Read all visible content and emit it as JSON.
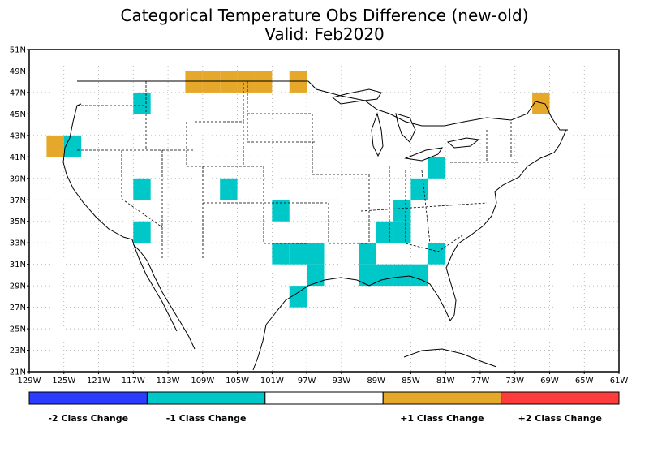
{
  "title": {
    "line1": "Categorical Temperature Obs Difference (new-old)",
    "line2": "Valid: Feb2020"
  },
  "axes": {
    "lat_labels": [
      "51N",
      "49N",
      "47N",
      "45N",
      "43N",
      "41N",
      "39N",
      "37N",
      "35N",
      "33N",
      "31N",
      "29N",
      "27N",
      "25N",
      "23N",
      "21N"
    ],
    "lon_labels": [
      "129W",
      "125W",
      "121W",
      "117W",
      "113W",
      "109W",
      "105W",
      "101W",
      "97W",
      "93W",
      "89W",
      "85W",
      "81W",
      "77W",
      "73W",
      "69W",
      "65W",
      "61W"
    ],
    "lat_range": [
      21,
      51
    ],
    "lon_range": [
      -129,
      -61
    ]
  },
  "colors": {
    "minus2": "#2a3cff",
    "minus1": "#00c8c8",
    "zero": "#ffffff",
    "plus1": "#e6a82a",
    "plus2": "#ff3c3c"
  },
  "legend": [
    {
      "label": "-2 Class Change",
      "color": "#2a3cff"
    },
    {
      "label": "-1 Class Change",
      "color": "#00c8c8"
    },
    {
      "label": "",
      "color": "#ffffff"
    },
    {
      "label": "+1 Class Change",
      "color": "#e6a82a"
    },
    {
      "label": "+2 Class Change",
      "color": "#ff3c3c"
    }
  ],
  "chart_data": {
    "type": "heatmap",
    "grid_resolution_deg": 2,
    "x_unit": "longitude (deg E)",
    "y_unit": "latitude (deg N)",
    "cells": [
      {
        "lon_min": -117,
        "lat_min": 45,
        "value": -1
      },
      {
        "lon_min": -127,
        "lat_min": 41,
        "value": 1
      },
      {
        "lon_min": -125,
        "lat_min": 41,
        "value": -1
      },
      {
        "lon_min": -111,
        "lat_min": 47,
        "value": 1
      },
      {
        "lon_min": -109,
        "lat_min": 47,
        "value": 1
      },
      {
        "lon_min": -107,
        "lat_min": 47,
        "value": 1
      },
      {
        "lon_min": -105,
        "lat_min": 47,
        "value": 1
      },
      {
        "lon_min": -103,
        "lat_min": 47,
        "value": 1
      },
      {
        "lon_min": -99,
        "lat_min": 47,
        "value": 1
      },
      {
        "lon_min": -71,
        "lat_min": 45,
        "value": 1
      },
      {
        "lon_min": -117,
        "lat_min": 37,
        "value": -1
      },
      {
        "lon_min": -107,
        "lat_min": 37,
        "value": -1
      },
      {
        "lon_min": -117,
        "lat_min": 33,
        "value": -1
      },
      {
        "lon_min": -101,
        "lat_min": 35,
        "value": -1
      },
      {
        "lon_min": -101,
        "lat_min": 31,
        "value": -1
      },
      {
        "lon_min": -99,
        "lat_min": 31,
        "value": -1
      },
      {
        "lon_min": -97,
        "lat_min": 31,
        "value": -1
      },
      {
        "lon_min": -97,
        "lat_min": 29,
        "value": -1
      },
      {
        "lon_min": -99,
        "lat_min": 27,
        "value": -1
      },
      {
        "lon_min": -83,
        "lat_min": 39,
        "value": -1
      },
      {
        "lon_min": -85,
        "lat_min": 37,
        "value": -1
      },
      {
        "lon_min": -87,
        "lat_min": 35,
        "value": -1
      },
      {
        "lon_min": -89,
        "lat_min": 33,
        "value": -1
      },
      {
        "lon_min": -87,
        "lat_min": 33,
        "value": -1
      },
      {
        "lon_min": -83,
        "lat_min": 31,
        "value": -1
      },
      {
        "lon_min": -91,
        "lat_min": 31,
        "value": -1
      },
      {
        "lon_min": -91,
        "lat_min": 29,
        "value": -1
      },
      {
        "lon_min": -89,
        "lat_min": 29,
        "value": -1
      },
      {
        "lon_min": -87,
        "lat_min": 29,
        "value": -1
      },
      {
        "lon_min": -85,
        "lat_min": 29,
        "value": -1
      }
    ]
  }
}
